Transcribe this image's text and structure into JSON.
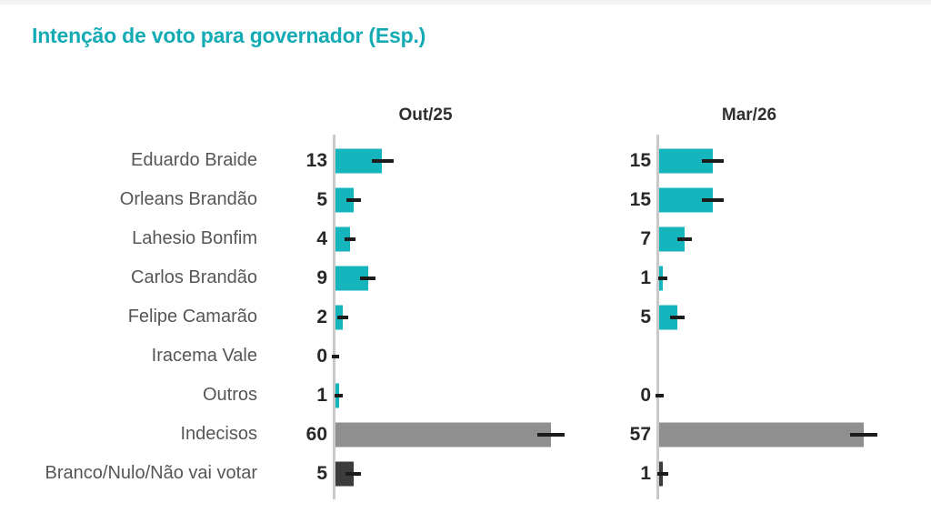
{
  "title": "Intenção de voto para governador (Esp.)",
  "colors": {
    "accent_title": "#14abb5",
    "bar_teal": "#14b5bc",
    "bar_gray": "#8f8f8f",
    "bar_dark": "#3c3c3c",
    "error_bar": "#1c1c1c",
    "axis_line": "#c9c9c9",
    "label_text": "#565656",
    "value_text": "#282828"
  },
  "chart_data": {
    "type": "bar",
    "orientation": "horizontal",
    "title": "Intenção de voto para governador (Esp.)",
    "unit": "%",
    "xlim": [
      0,
      70
    ],
    "grid": false,
    "legend_position": "none",
    "panel_headers": [
      "Out/25",
      "Mar/26"
    ],
    "categories": [
      "Eduardo Braide",
      "Orleans Brandão",
      "Lahesio Bonfim",
      "Carlos Brandão",
      "Felipe Camarão",
      "Iracema Vale",
      "Outros",
      "Indecisos",
      "Branco/Nulo/Não vai votar"
    ],
    "category_colors": [
      "teal",
      "teal",
      "teal",
      "teal",
      "teal",
      "teal",
      "teal",
      "gray",
      "dark"
    ],
    "series": [
      {
        "name": "Out/25",
        "values": [
          13,
          5,
          4,
          9,
          2,
          0,
          1,
          60,
          5
        ]
      },
      {
        "name": "Mar/26",
        "values": [
          15,
          15,
          7,
          1,
          5,
          null,
          0,
          57,
          1
        ]
      }
    ],
    "error_margins": [
      [
        3,
        2,
        1.5,
        2.2,
        1.5,
        1,
        1.2,
        3.8,
        2.2
      ],
      [
        3,
        3,
        2,
        1.3,
        2,
        null,
        1.2,
        3.8,
        1.5
      ]
    ],
    "error_bars": true
  }
}
